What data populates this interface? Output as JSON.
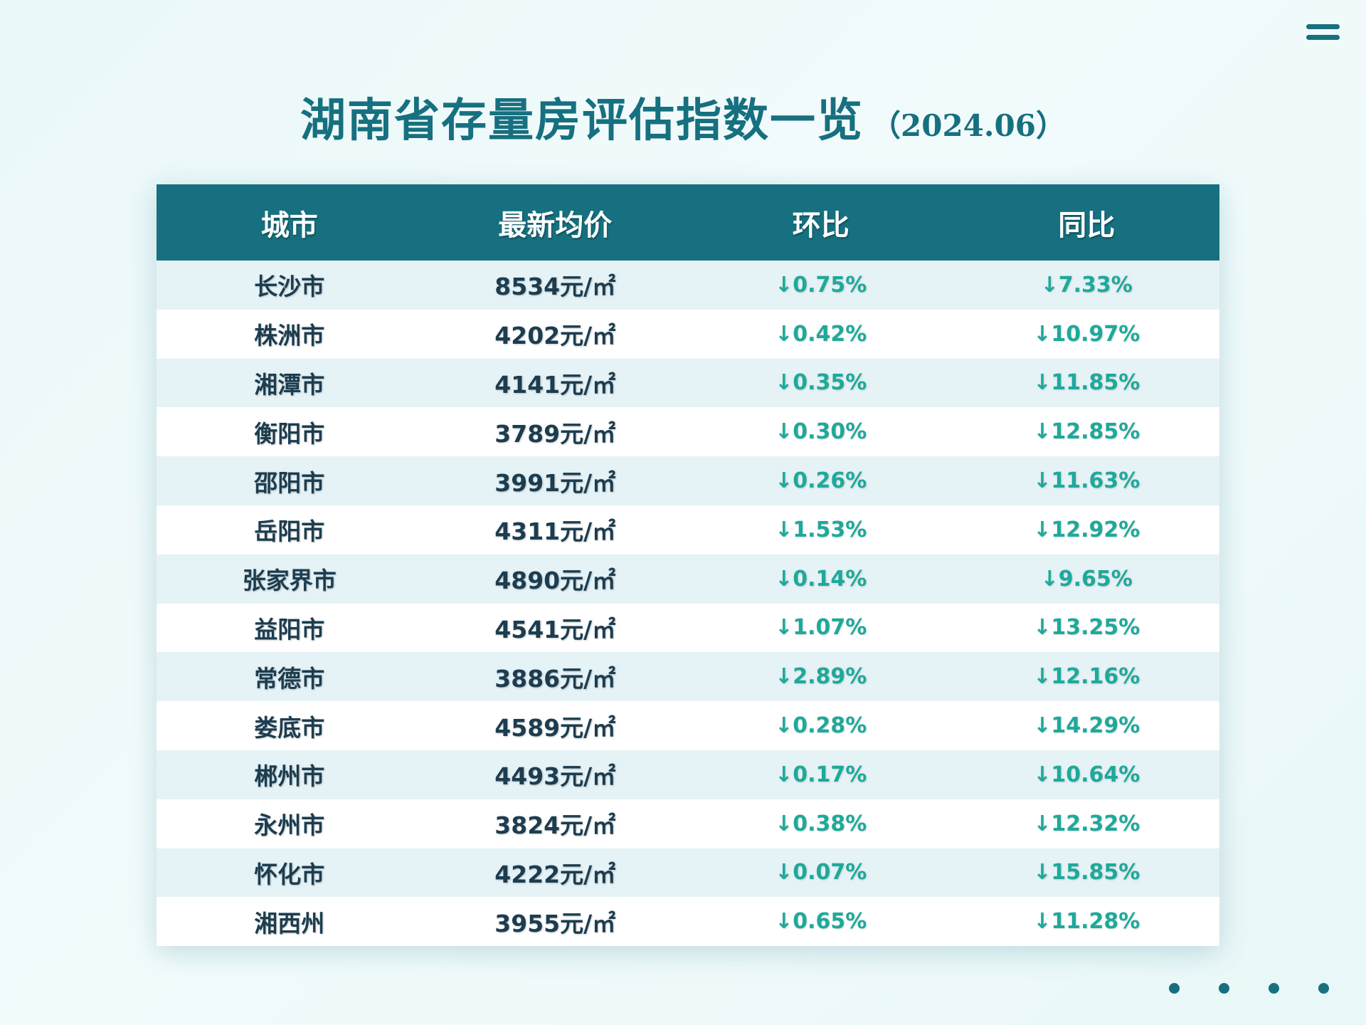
{
  "title": {
    "main": "湖南省存量房评估指数一览",
    "sub": "（2024.06）"
  },
  "icons": {
    "menu": "menu-icon",
    "pagination": "dot-indicator"
  },
  "colors": {
    "accent": "#16707f",
    "down": "#1ea99a",
    "text": "#1c3d50"
  },
  "table": {
    "headers": [
      "城市",
      "最新均价",
      "环比",
      "同比"
    ],
    "rows": [
      {
        "city": "长沙市",
        "price": "8534元/㎡",
        "mom": "↓0.75%",
        "yoy": "↓7.33%"
      },
      {
        "city": "株洲市",
        "price": "4202元/㎡",
        "mom": "↓0.42%",
        "yoy": "↓10.97%"
      },
      {
        "city": "湘潭市",
        "price": "4141元/㎡",
        "mom": "↓0.35%",
        "yoy": "↓11.85%"
      },
      {
        "city": "衡阳市",
        "price": "3789元/㎡",
        "mom": "↓0.30%",
        "yoy": "↓12.85%"
      },
      {
        "city": "邵阳市",
        "price": "3991元/㎡",
        "mom": "↓0.26%",
        "yoy": "↓11.63%"
      },
      {
        "city": "岳阳市",
        "price": "4311元/㎡",
        "mom": "↓1.53%",
        "yoy": "↓12.92%"
      },
      {
        "city": "张家界市",
        "price": "4890元/㎡",
        "mom": "↓0.14%",
        "yoy": "↓9.65%"
      },
      {
        "city": "益阳市",
        "price": "4541元/㎡",
        "mom": "↓1.07%",
        "yoy": "↓13.25%"
      },
      {
        "city": "常德市",
        "price": "3886元/㎡",
        "mom": "↓2.89%",
        "yoy": "↓12.16%"
      },
      {
        "city": "娄底市",
        "price": "4589元/㎡",
        "mom": "↓0.28%",
        "yoy": "↓14.29%"
      },
      {
        "city": "郴州市",
        "price": "4493元/㎡",
        "mom": "↓0.17%",
        "yoy": "↓10.64%"
      },
      {
        "city": "永州市",
        "price": "3824元/㎡",
        "mom": "↓0.38%",
        "yoy": "↓12.32%"
      },
      {
        "city": "怀化市",
        "price": "4222元/㎡",
        "mom": "↓0.07%",
        "yoy": "↓15.85%"
      },
      {
        "city": "湘西州",
        "price": "3955元/㎡",
        "mom": "↓0.65%",
        "yoy": "↓11.28%"
      }
    ]
  }
}
